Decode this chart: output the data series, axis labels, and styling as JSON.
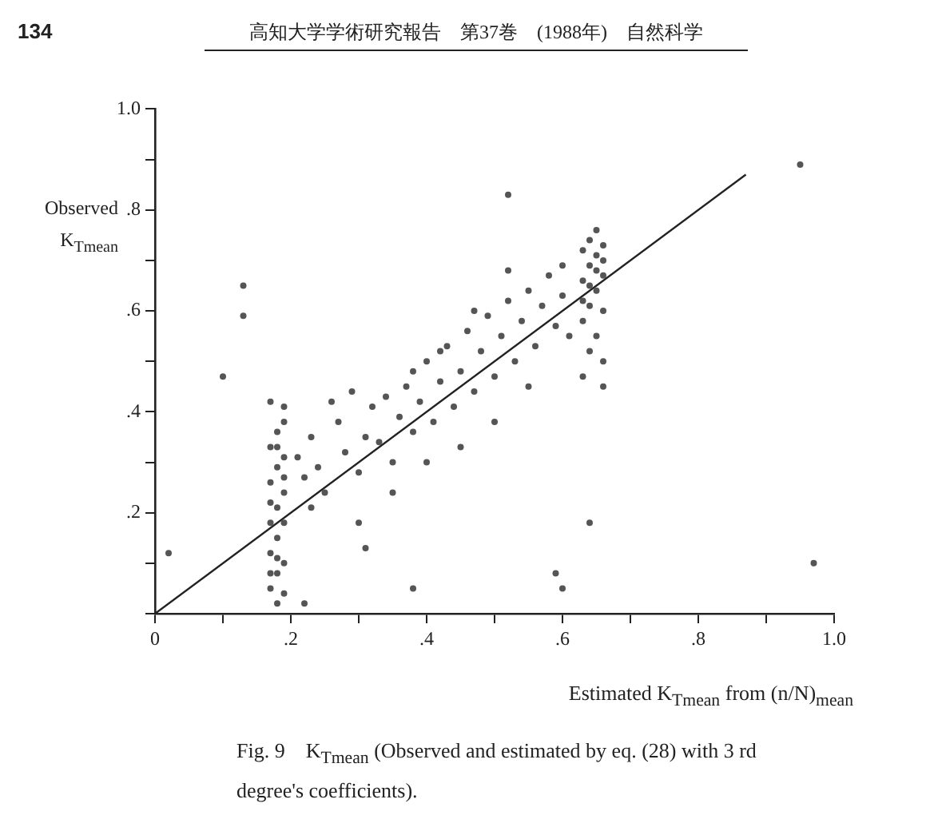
{
  "chart_data": {
    "type": "scatter",
    "xlabel": "Estimated K$_{Tmean}$ from (n/N)$_{mean}$",
    "ylabel": "Observed K$_{Tmean}$",
    "annotations": [
      "134",
      "高知大学学術研究報告　第37巻　(1988年)　自然科学",
      "Fig. 9　K$_{Tmean}$ (Observed and estimated by eq. (28) with 3 rd degree's coefficients)."
    ],
    "xlim": [
      0,
      1
    ],
    "ylim": [
      0,
      1
    ],
    "xticks": [
      0,
      {
        "value": 0.1,
        "label": null
      },
      {
        "value": 0.2,
        "label": ".2"
      },
      {
        "value": 0.3,
        "label": null
      },
      {
        "value": 0.4,
        "label": ".4"
      },
      {
        "value": 0.5,
        "label": null
      },
      {
        "value": 0.6,
        "label": ".6"
      },
      {
        "value": 0.7,
        "label": null
      },
      {
        "value": 0.8,
        "label": ".8"
      },
      {
        "value": 0.9,
        "label": null
      },
      {
        "value": 1,
        "label": "1.0"
      }
    ],
    "yticks": [
      {
        "value": 0,
        "label": null
      },
      {
        "value": 0.1,
        "label": null
      },
      {
        "value": 0.2,
        "label": ".2"
      },
      {
        "value": 0.3,
        "label": null
      },
      {
        "value": 0.4,
        "label": ".4"
      },
      {
        "value": 0.5,
        "label": null
      },
      {
        "value": 0.6,
        "label": ".6"
      },
      {
        "value": 0.7,
        "label": null
      },
      {
        "value": 0.8,
        "label": ".8"
      },
      {
        "value": 0.9,
        "label": null
      },
      {
        "value": 1,
        "label": "1.0"
      }
    ],
    "grid": false,
    "legend": false,
    "series": [
      {
        "color": "#555555",
        "marker": "circle",
        "x": [
          0.17,
          0.18,
          0.19,
          0.17,
          0.18,
          0.19,
          0.17,
          0.18,
          0.19,
          0.17,
          0.18,
          0.19,
          0.17,
          0.18,
          0.19,
          0.17,
          0.19,
          0.18,
          0.17,
          0.19,
          0.18,
          0.17,
          0.19,
          0.18,
          0.13,
          0.13,
          0.1,
          0.02,
          0.22,
          0.38,
          0.31,
          0.64,
          0.59,
          0.6,
          0.97,
          0.52,
          0.95,
          0.21,
          0.22,
          0.23,
          0.24,
          0.25,
          0.23,
          0.26,
          0.27,
          0.28,
          0.29,
          0.3,
          0.31,
          0.32,
          0.33,
          0.34,
          0.35,
          0.36,
          0.37,
          0.38,
          0.39,
          0.4,
          0.41,
          0.42,
          0.43,
          0.44,
          0.45,
          0.46,
          0.47,
          0.48,
          0.49,
          0.5,
          0.51,
          0.52,
          0.53,
          0.54,
          0.55,
          0.56,
          0.57,
          0.58,
          0.59,
          0.6,
          0.61,
          0.6,
          0.35,
          0.45,
          0.5,
          0.55,
          0.4,
          0.3,
          0.52,
          0.47,
          0.42,
          0.38,
          0.63,
          0.64,
          0.65,
          0.66,
          0.63,
          0.64,
          0.65,
          0.66,
          0.63,
          0.64,
          0.65,
          0.66,
          0.63,
          0.64,
          0.65,
          0.66,
          0.64,
          0.65,
          0.66,
          0.63,
          0.66
        ],
        "values": [
          0.05,
          0.08,
          0.04,
          0.12,
          0.15,
          0.1,
          0.18,
          0.21,
          0.24,
          0.26,
          0.29,
          0.31,
          0.33,
          0.36,
          0.38,
          0.42,
          0.41,
          0.02,
          0.22,
          0.18,
          0.11,
          0.08,
          0.27,
          0.33,
          0.65,
          0.59,
          0.47,
          0.12,
          0.02,
          0.05,
          0.13,
          0.18,
          0.08,
          0.05,
          0.1,
          0.83,
          0.89,
          0.31,
          0.27,
          0.35,
          0.29,
          0.24,
          0.21,
          0.42,
          0.38,
          0.32,
          0.44,
          0.28,
          0.35,
          0.41,
          0.34,
          0.43,
          0.3,
          0.39,
          0.45,
          0.36,
          0.42,
          0.5,
          0.38,
          0.46,
          0.53,
          0.41,
          0.48,
          0.56,
          0.44,
          0.52,
          0.59,
          0.47,
          0.55,
          0.62,
          0.5,
          0.58,
          0.64,
          0.53,
          0.61,
          0.67,
          0.57,
          0.63,
          0.55,
          0.69,
          0.24,
          0.33,
          0.38,
          0.45,
          0.3,
          0.18,
          0.68,
          0.6,
          0.52,
          0.48,
          0.47,
          0.52,
          0.55,
          0.5,
          0.58,
          0.61,
          0.64,
          0.6,
          0.66,
          0.69,
          0.71,
          0.67,
          0.72,
          0.74,
          0.76,
          0.73,
          0.65,
          0.68,
          0.7,
          0.62,
          0.45
        ]
      },
      {
        "type": "line",
        "color": "#222222",
        "marker": "none",
        "line_style": "solid",
        "x": [
          0,
          0.87
        ],
        "values": [
          0,
          0.87
        ]
      }
    ]
  }
}
